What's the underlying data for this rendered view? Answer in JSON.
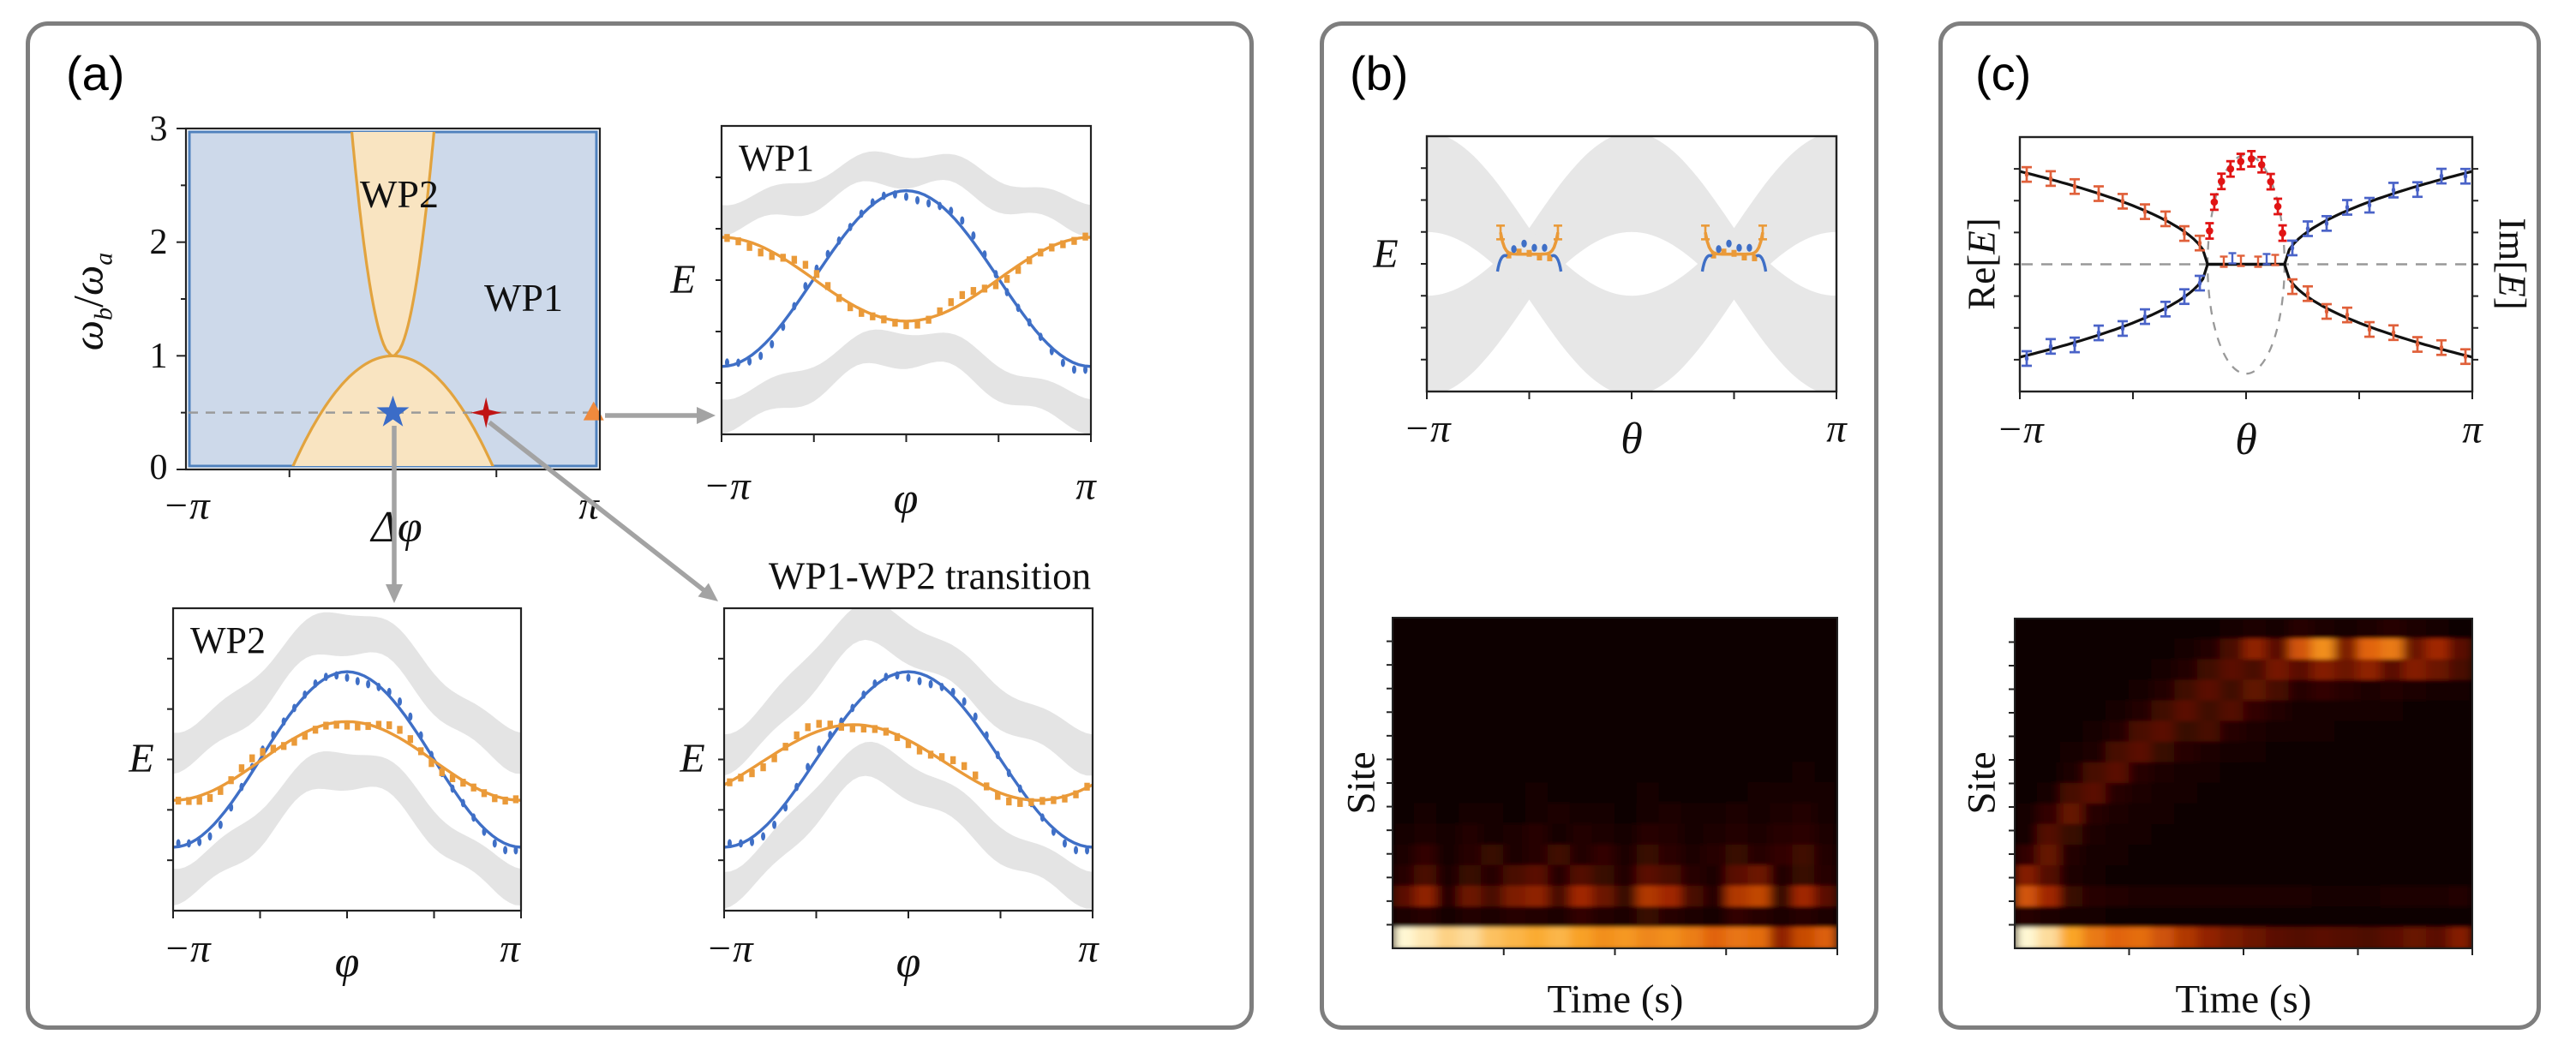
{
  "figure": {
    "background": "#ffffff",
    "panel_border_color": "#7e7e7e"
  },
  "panels": {
    "a": {
      "letter": "(a)",
      "phase": {
        "ylabel_parts": [
          "ω",
          "b",
          "/",
          "ω",
          "a"
        ],
        "xlabel": "Δφ",
        "y_ticks": [
          "3",
          "2",
          "1",
          "0"
        ],
        "x_ticks": [
          "−π",
          "π"
        ],
        "region_labels": {
          "wp1": "WP1",
          "wp2": "WP2"
        }
      },
      "wp1": {
        "title": "WP1",
        "ylabel": "E",
        "x_ticks": [
          "−π",
          "φ",
          "π"
        ]
      },
      "wp2": {
        "title": "WP2",
        "ylabel": "E",
        "x_ticks": [
          "−π",
          "φ",
          "π"
        ]
      },
      "transition": {
        "title": "WP1-WP2 transition",
        "ylabel": "E",
        "x_ticks": [
          "−π",
          "φ",
          "π"
        ]
      }
    },
    "b": {
      "letter": "(b)",
      "spectrum": {
        "ylabel": "E",
        "x_ticks": [
          "−π",
          "θ",
          "π"
        ]
      },
      "heatmap": {
        "ylabel": "Site",
        "xlabel": "Time (s)"
      }
    },
    "c": {
      "letter": "(c)",
      "spectrum": {
        "ylabel_left_parts": [
          "Re[",
          "E",
          "]"
        ],
        "ylabel_right_parts": [
          "Im[",
          "E",
          "]"
        ],
        "x_ticks": [
          "−π",
          "θ",
          "π"
        ]
      },
      "heatmap": {
        "ylabel": "Site",
        "xlabel": "Time (s)"
      }
    }
  },
  "chart_data": {
    "phase_diagram": {
      "type": "area",
      "xlabel": "Δφ",
      "ylabel": "ωb/ωa",
      "xlim_pi": [
        -1,
        1
      ],
      "ylim": [
        0,
        3
      ],
      "x_tick_pi": [
        -0.5,
        0,
        0.5
      ],
      "colors": {
        "wp1_fill": "#cdd9ea",
        "wp1_edge": "#4f81bd",
        "wp2_fill": "#f9e4c1",
        "wp2_edge": "#e2a33e",
        "dashed": "#9a9a9a"
      },
      "wp2_funnel": {
        "apex": [
          0,
          1
        ],
        "half_width_top_pi": 0.2
      },
      "wp2_dome": {
        "apex": [
          0,
          1
        ],
        "base_half_width_pi": 0.49
      },
      "dashed_line_y": 0.5,
      "markers": [
        {
          "shape": "star5",
          "color": "#3b6cc7",
          "x_pi": 0.0,
          "y": 0.5
        },
        {
          "shape": "star4",
          "color": "#c01414",
          "x_pi": 0.45,
          "y": 0.5
        },
        {
          "shape": "triangle",
          "color": "#ef8a3d",
          "x_pi": 0.97,
          "y": 0.5
        }
      ]
    },
    "wp1_bands": {
      "type": "line",
      "x_range_pi": [
        -1,
        1
      ],
      "n_dots": 33,
      "series": [
        {
          "name": "blue edge band",
          "color": "#3f6fc6",
          "marker": "dash",
          "mean": 0.495,
          "amp": 0.285,
          "phase": 0
        },
        {
          "name": "orange edge band",
          "color": "#ea9a39",
          "marker": "sq",
          "mean": 0.497,
          "amp": -0.136,
          "phase": 0
        }
      ],
      "bulk_bands": [
        {
          "mean": 0.163,
          "amp": 0.077,
          "th": 0.095,
          "phase": 0
        },
        {
          "mean": 0.765,
          "amp": 0.105,
          "th": 0.105,
          "phase": 0
        }
      ]
    },
    "wp2_bands": {
      "type": "line",
      "x_range_pi": [
        -1,
        1
      ],
      "n_dots": 33,
      "series": [
        {
          "name": "blue edge band",
          "color": "#3f6fc6",
          "marker": "dash",
          "mean": 0.5,
          "amp": 0.29,
          "phase": 0
        },
        {
          "name": "orange edge band",
          "color": "#ea9a39",
          "marker": "sq",
          "mean": 0.505,
          "amp": 0.13,
          "phase": 0
        }
      ],
      "bulk_bands": [
        {
          "mean": 0.2,
          "amp": 0.195,
          "th": 0.13,
          "phase": 0
        },
        {
          "mean": 0.655,
          "amp": 0.19,
          "th": 0.115,
          "phase": 0
        }
      ]
    },
    "transition_bands": {
      "type": "line",
      "x_range_pi": [
        -1,
        1
      ],
      "n_dots": 33,
      "series": [
        {
          "name": "blue edge band",
          "color": "#3f6fc6",
          "marker": "dash",
          "mean": 0.5,
          "amp": 0.29,
          "phase": 0
        },
        {
          "name": "orange edge band",
          "color": "#ea9a39",
          "marker": "sq",
          "mean": 0.51,
          "amp": 0.125,
          "phase": 0.94
        }
      ],
      "bulk_bands": [
        {
          "mean": 0.2,
          "amp": 0.195,
          "th": 0.13,
          "phase": 0.35,
          "h2": 0.03
        },
        {
          "mean": 0.66,
          "amp": 0.19,
          "th": 0.115,
          "phase": 0.35,
          "h2": 0.03
        }
      ]
    },
    "b_spectrum": {
      "type": "area",
      "x_range_pi": [
        -1,
        1
      ],
      "bulk": {
        "center_amp": 0.32,
        "half_th_base": 0.14,
        "half_th_mod": 0.055,
        "fill": "#e7e7e7"
      },
      "edge_clusters": {
        "centers_pi": [
          -0.5,
          0.5
        ],
        "half_width_pi": 0.14,
        "orange_y": 0.462,
        "blue_y": 0.432,
        "colors": {
          "orange": "#ea9a39",
          "blue": "#3f6fc6"
        }
      }
    },
    "c_spectrum": {
      "type": "line",
      "x_range_pi": [
        -1,
        1
      ],
      "ep_pi": 0.17,
      "re_amp": 0.365,
      "im_ellipse_ry": 0.43,
      "n_branch_points": 9,
      "colors": {
        "curve": "#111111",
        "dashed": "#999999",
        "vermilion": "#e0603a",
        "blue": "#4a63c8",
        "red": "#e11414"
      }
    },
    "b_heatmap": {
      "type": "heatmap",
      "rows": 16,
      "cols": 20,
      "values": [
        [
          0.01,
          0.01,
          0.01,
          0.01,
          0.01,
          0.01,
          0.01,
          0.01,
          0.01,
          0.01,
          0.01,
          0.01,
          0.01,
          0.01,
          0.01,
          0.01,
          0.01,
          0.01,
          0.01,
          0.01
        ],
        [
          0.01,
          0.01,
          0.01,
          0.01,
          0.01,
          0.01,
          0.01,
          0.01,
          0.01,
          0.01,
          0.01,
          0.01,
          0.01,
          0.01,
          0.01,
          0.01,
          0.01,
          0.01,
          0.01,
          0.01
        ],
        [
          0.01,
          0.01,
          0.01,
          0.01,
          0.01,
          0.01,
          0.01,
          0.01,
          0.01,
          0.01,
          0.01,
          0.01,
          0.01,
          0.01,
          0.01,
          0.01,
          0.01,
          0.01,
          0.01,
          0.01
        ],
        [
          0.01,
          0.01,
          0.01,
          0.01,
          0.01,
          0.01,
          0.01,
          0.01,
          0.01,
          0.01,
          0.01,
          0.01,
          0.01,
          0.01,
          0.01,
          0.01,
          0.01,
          0.01,
          0.01,
          0.01
        ],
        [
          0.01,
          0.01,
          0.01,
          0.01,
          0.01,
          0.01,
          0.01,
          0.01,
          0.01,
          0.01,
          0.01,
          0.01,
          0.01,
          0.01,
          0.01,
          0.01,
          0.01,
          0.01,
          0.01,
          0.01
        ],
        [
          0.01,
          0.01,
          0.01,
          0.01,
          0.01,
          0.01,
          0.01,
          0.01,
          0.01,
          0.01,
          0.01,
          0.01,
          0.01,
          0.01,
          0.01,
          0.01,
          0.02,
          0.02,
          0.02,
          0.02
        ],
        [
          0.01,
          0.01,
          0.01,
          0.01,
          0.01,
          0.01,
          0.01,
          0.01,
          0.01,
          0.01,
          0.01,
          0.01,
          0.02,
          0.02,
          0.02,
          0.02,
          0.02,
          0.03,
          0.03,
          0.03
        ],
        [
          0.02,
          0.02,
          0.02,
          0.02,
          0.02,
          0.02,
          0.02,
          0.02,
          0.02,
          0.02,
          0.02,
          0.03,
          0.03,
          0.03,
          0.03,
          0.03,
          0.04,
          0.04,
          0.05,
          0.04
        ],
        [
          0.02,
          0.03,
          0.02,
          0.04,
          0.03,
          0.02,
          0.05,
          0.03,
          0.04,
          0.02,
          0.03,
          0.05,
          0.04,
          0.03,
          0.02,
          0.04,
          0.06,
          0.05,
          0.08,
          0.06
        ],
        [
          0.04,
          0.06,
          0.03,
          0.05,
          0.08,
          0.04,
          0.06,
          0.09,
          0.05,
          0.07,
          0.04,
          0.08,
          0.1,
          0.06,
          0.05,
          0.09,
          0.07,
          0.1,
          0.12,
          0.08
        ],
        [
          0.06,
          0.1,
          0.05,
          0.12,
          0.07,
          0.1,
          0.14,
          0.08,
          0.12,
          0.1,
          0.06,
          0.14,
          0.12,
          0.08,
          0.1,
          0.13,
          0.1,
          0.14,
          0.16,
          0.1
        ],
        [
          0.1,
          0.18,
          0.08,
          0.15,
          0.2,
          0.1,
          0.15,
          0.22,
          0.12,
          0.18,
          0.1,
          0.2,
          0.16,
          0.1,
          0.14,
          0.2,
          0.15,
          0.18,
          0.22,
          0.12
        ],
        [
          0.15,
          0.25,
          0.1,
          0.2,
          0.15,
          0.25,
          0.3,
          0.15,
          0.28,
          0.2,
          0.12,
          0.3,
          0.25,
          0.15,
          0.1,
          0.3,
          0.35,
          0.12,
          0.2,
          0.15
        ],
        [
          0.3,
          0.45,
          0.15,
          0.35,
          0.25,
          0.4,
          0.45,
          0.25,
          0.5,
          0.35,
          0.2,
          0.55,
          0.5,
          0.25,
          0.15,
          0.55,
          0.6,
          0.2,
          0.5,
          0.3
        ],
        [
          0.1,
          0.15,
          0.08,
          0.12,
          0.1,
          0.15,
          0.12,
          0.1,
          0.18,
          0.12,
          0.1,
          0.2,
          0.15,
          0.1,
          0.08,
          0.18,
          0.15,
          0.1,
          0.15,
          0.1
        ],
        [
          1.0,
          0.97,
          0.93,
          0.95,
          0.9,
          0.88,
          0.86,
          0.88,
          0.84,
          0.8,
          0.82,
          0.78,
          0.8,
          0.76,
          0.7,
          0.74,
          0.72,
          0.45,
          0.62,
          0.68
        ]
      ]
    },
    "c_heatmap": {
      "type": "heatmap",
      "rows": 16,
      "cols": 20,
      "values": [
        [
          0.02,
          0.02,
          0.02,
          0.02,
          0.02,
          0.02,
          0.02,
          0.02,
          0.03,
          0.06,
          0.1,
          0.08,
          0.14,
          0.1,
          0.08,
          0.1,
          0.14,
          0.1,
          0.06,
          0.04
        ],
        [
          0.02,
          0.02,
          0.02,
          0.02,
          0.02,
          0.02,
          0.03,
          0.05,
          0.12,
          0.25,
          0.45,
          0.3,
          0.65,
          0.8,
          0.4,
          0.7,
          0.75,
          0.35,
          0.5,
          0.3
        ],
        [
          0.02,
          0.02,
          0.02,
          0.02,
          0.02,
          0.03,
          0.06,
          0.12,
          0.22,
          0.3,
          0.25,
          0.38,
          0.3,
          0.42,
          0.35,
          0.45,
          0.3,
          0.42,
          0.35,
          0.25
        ],
        [
          0.02,
          0.02,
          0.02,
          0.02,
          0.03,
          0.06,
          0.12,
          0.22,
          0.3,
          0.22,
          0.32,
          0.24,
          0.15,
          0.18,
          0.14,
          0.1,
          0.12,
          0.1,
          0.08,
          0.08
        ],
        [
          0.02,
          0.02,
          0.02,
          0.03,
          0.06,
          0.12,
          0.22,
          0.3,
          0.22,
          0.28,
          0.18,
          0.12,
          0.08,
          0.07,
          0.06,
          0.05,
          0.05,
          0.04,
          0.04,
          0.04
        ],
        [
          0.02,
          0.02,
          0.03,
          0.06,
          0.12,
          0.25,
          0.3,
          0.2,
          0.24,
          0.14,
          0.09,
          0.07,
          0.05,
          0.05,
          0.04,
          0.04,
          0.04,
          0.03,
          0.03,
          0.03
        ],
        [
          0.02,
          0.02,
          0.05,
          0.1,
          0.24,
          0.3,
          0.2,
          0.14,
          0.1,
          0.08,
          0.05,
          0.04,
          0.04,
          0.03,
          0.03,
          0.03,
          0.03,
          0.03,
          0.03,
          0.03
        ],
        [
          0.02,
          0.04,
          0.1,
          0.24,
          0.3,
          0.15,
          0.1,
          0.07,
          0.05,
          0.04,
          0.03,
          0.03,
          0.03,
          0.03,
          0.03,
          0.03,
          0.03,
          0.02,
          0.02,
          0.02
        ],
        [
          0.03,
          0.08,
          0.24,
          0.3,
          0.15,
          0.09,
          0.06,
          0.05,
          0.04,
          0.03,
          0.03,
          0.02,
          0.02,
          0.02,
          0.02,
          0.02,
          0.02,
          0.02,
          0.02,
          0.02
        ],
        [
          0.05,
          0.18,
          0.33,
          0.15,
          0.09,
          0.06,
          0.05,
          0.04,
          0.03,
          0.03,
          0.02,
          0.02,
          0.02,
          0.02,
          0.02,
          0.02,
          0.02,
          0.02,
          0.02,
          0.02
        ],
        [
          0.08,
          0.28,
          0.2,
          0.09,
          0.06,
          0.05,
          0.04,
          0.03,
          0.03,
          0.02,
          0.02,
          0.02,
          0.02,
          0.02,
          0.02,
          0.02,
          0.02,
          0.02,
          0.02,
          0.02
        ],
        [
          0.18,
          0.33,
          0.13,
          0.07,
          0.05,
          0.04,
          0.03,
          0.03,
          0.02,
          0.02,
          0.02,
          0.02,
          0.02,
          0.02,
          0.02,
          0.02,
          0.02,
          0.02,
          0.02,
          0.02
        ],
        [
          0.42,
          0.28,
          0.1,
          0.06,
          0.04,
          0.04,
          0.03,
          0.03,
          0.03,
          0.03,
          0.03,
          0.03,
          0.03,
          0.03,
          0.03,
          0.03,
          0.03,
          0.03,
          0.03,
          0.03
        ],
        [
          0.65,
          0.5,
          0.2,
          0.14,
          0.12,
          0.1,
          0.1,
          0.1,
          0.1,
          0.1,
          0.1,
          0.1,
          0.09,
          0.08,
          0.08,
          0.08,
          0.09,
          0.1,
          0.1,
          0.12
        ],
        [
          0.14,
          0.09,
          0.06,
          0.05,
          0.04,
          0.04,
          0.03,
          0.03,
          0.03,
          0.03,
          0.03,
          0.03,
          0.03,
          0.03,
          0.03,
          0.03,
          0.03,
          0.03,
          0.03,
          0.03
        ],
        [
          1.0,
          0.95,
          0.85,
          0.75,
          0.7,
          0.72,
          0.64,
          0.55,
          0.46,
          0.4,
          0.35,
          0.3,
          0.28,
          0.3,
          0.28,
          0.26,
          0.3,
          0.34,
          0.3,
          0.42
        ]
      ]
    }
  }
}
